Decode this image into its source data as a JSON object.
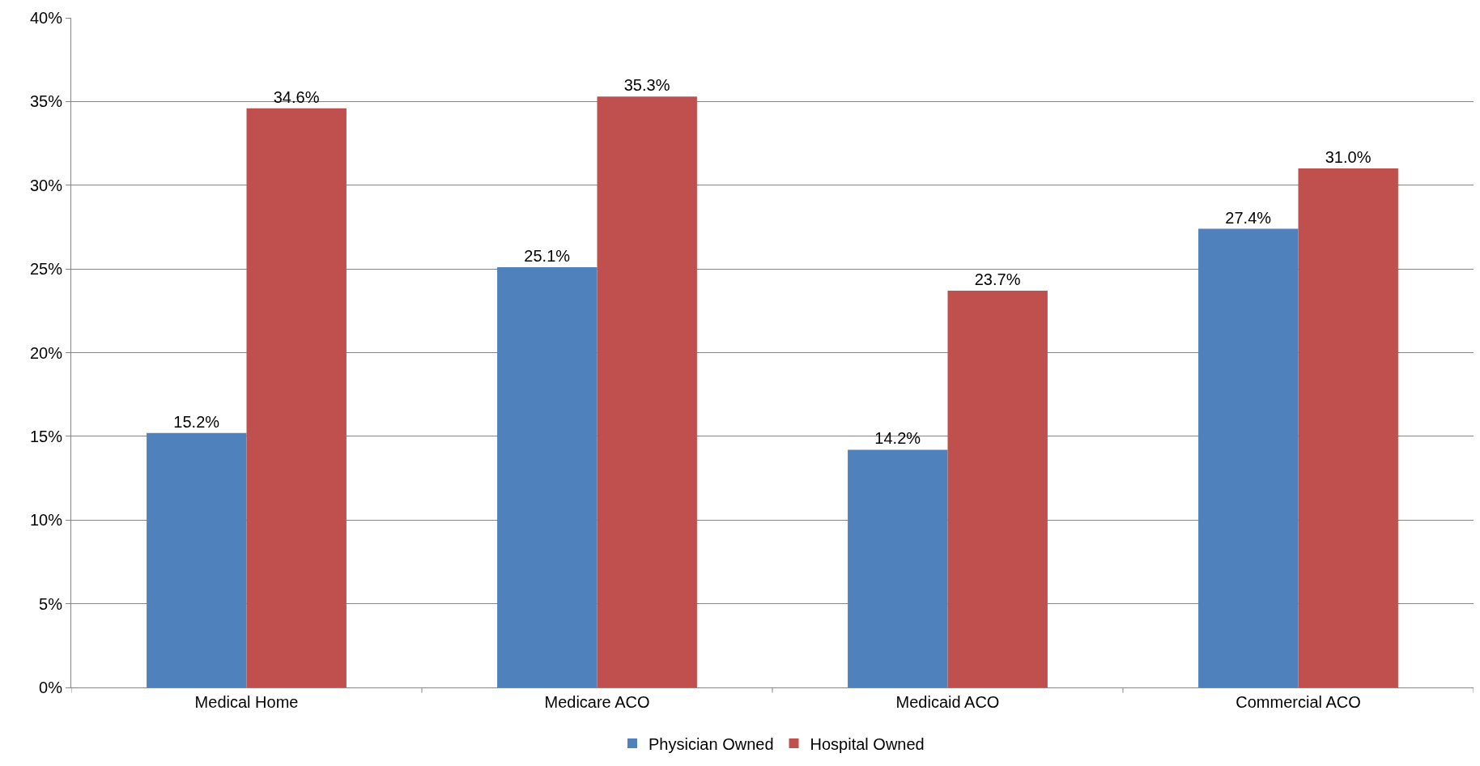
{
  "chart_data": {
    "type": "bar",
    "categories": [
      "Medical Home",
      "Medicare ACO",
      "Medicaid ACO",
      "Commercial ACO"
    ],
    "series": [
      {
        "name": "Physician Owned",
        "color": "#4f81bd",
        "values": [
          15.2,
          25.1,
          14.2,
          27.4
        ],
        "value_labels": [
          "15.2%",
          "25.1%",
          "14.2%",
          "27.4%"
        ]
      },
      {
        "name": "Hospital Owned",
        "color": "#c0504d",
        "values": [
          34.6,
          35.3,
          23.7,
          31.0
        ],
        "value_labels": [
          "34.6%",
          "35.3%",
          "23.7%",
          "31.0%"
        ]
      }
    ],
    "ylim": [
      0,
      40
    ],
    "yticks": [
      {
        "value": 0,
        "label": "0%"
      },
      {
        "value": 5,
        "label": "5%"
      },
      {
        "value": 10,
        "label": "10%"
      },
      {
        "value": 15,
        "label": "15%"
      },
      {
        "value": 20,
        "label": "20%"
      },
      {
        "value": 25,
        "label": "25%"
      },
      {
        "value": 30,
        "label": "30%"
      },
      {
        "value": 35,
        "label": "35%"
      },
      {
        "value": 40,
        "label": "40%"
      }
    ],
    "grid": "y",
    "legend": "bottom"
  }
}
